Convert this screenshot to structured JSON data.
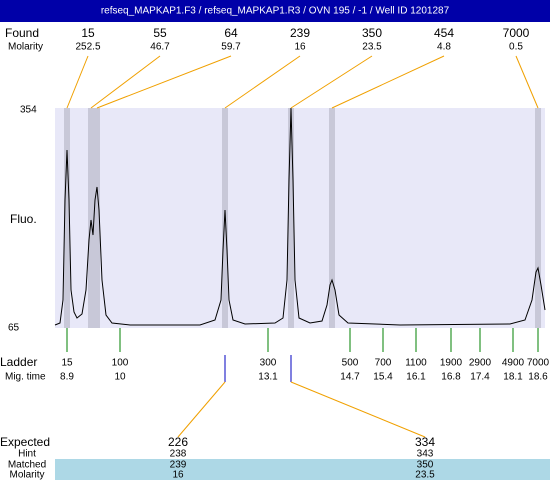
{
  "header": {
    "title": "refseq_MAPKAP1.F3 / refseq_MAPKAP1.R3 / OVN 195 / -1 / Well ID 1201287"
  },
  "found": {
    "label": "Found",
    "values": [
      "15",
      "55",
      "64",
      "239",
      "350",
      "454",
      "7000"
    ]
  },
  "molarity": {
    "label": "Molarity",
    "values": [
      "252.5",
      "46.7",
      "59.7",
      "16",
      "23.5",
      "4.8",
      "0.5"
    ]
  },
  "axis": {
    "top": "354",
    "bottom": "65",
    "label": "Fluo."
  },
  "ladder": {
    "label": "Ladder",
    "sizes": [
      "15",
      "100",
      "300",
      "500",
      "700",
      "1100",
      "1900",
      "2900",
      "4900",
      "7000"
    ]
  },
  "mig_time": {
    "label": "Mig. time",
    "values": [
      "8.9",
      "10",
      "13.1",
      "14.7",
      "15.4",
      "16.1",
      "16.8",
      "17.4",
      "18.1",
      "18.6"
    ]
  },
  "expected": {
    "label": "Expected",
    "values": [
      "226",
      "334"
    ]
  },
  "hint": {
    "label": "Hint",
    "values": [
      "238",
      "343"
    ]
  },
  "matched": {
    "label": "Matched",
    "values": [
      "239",
      "350"
    ]
  },
  "expected_molarity": {
    "label": "Molarity",
    "values": [
      "16",
      "23.5"
    ]
  }
}
